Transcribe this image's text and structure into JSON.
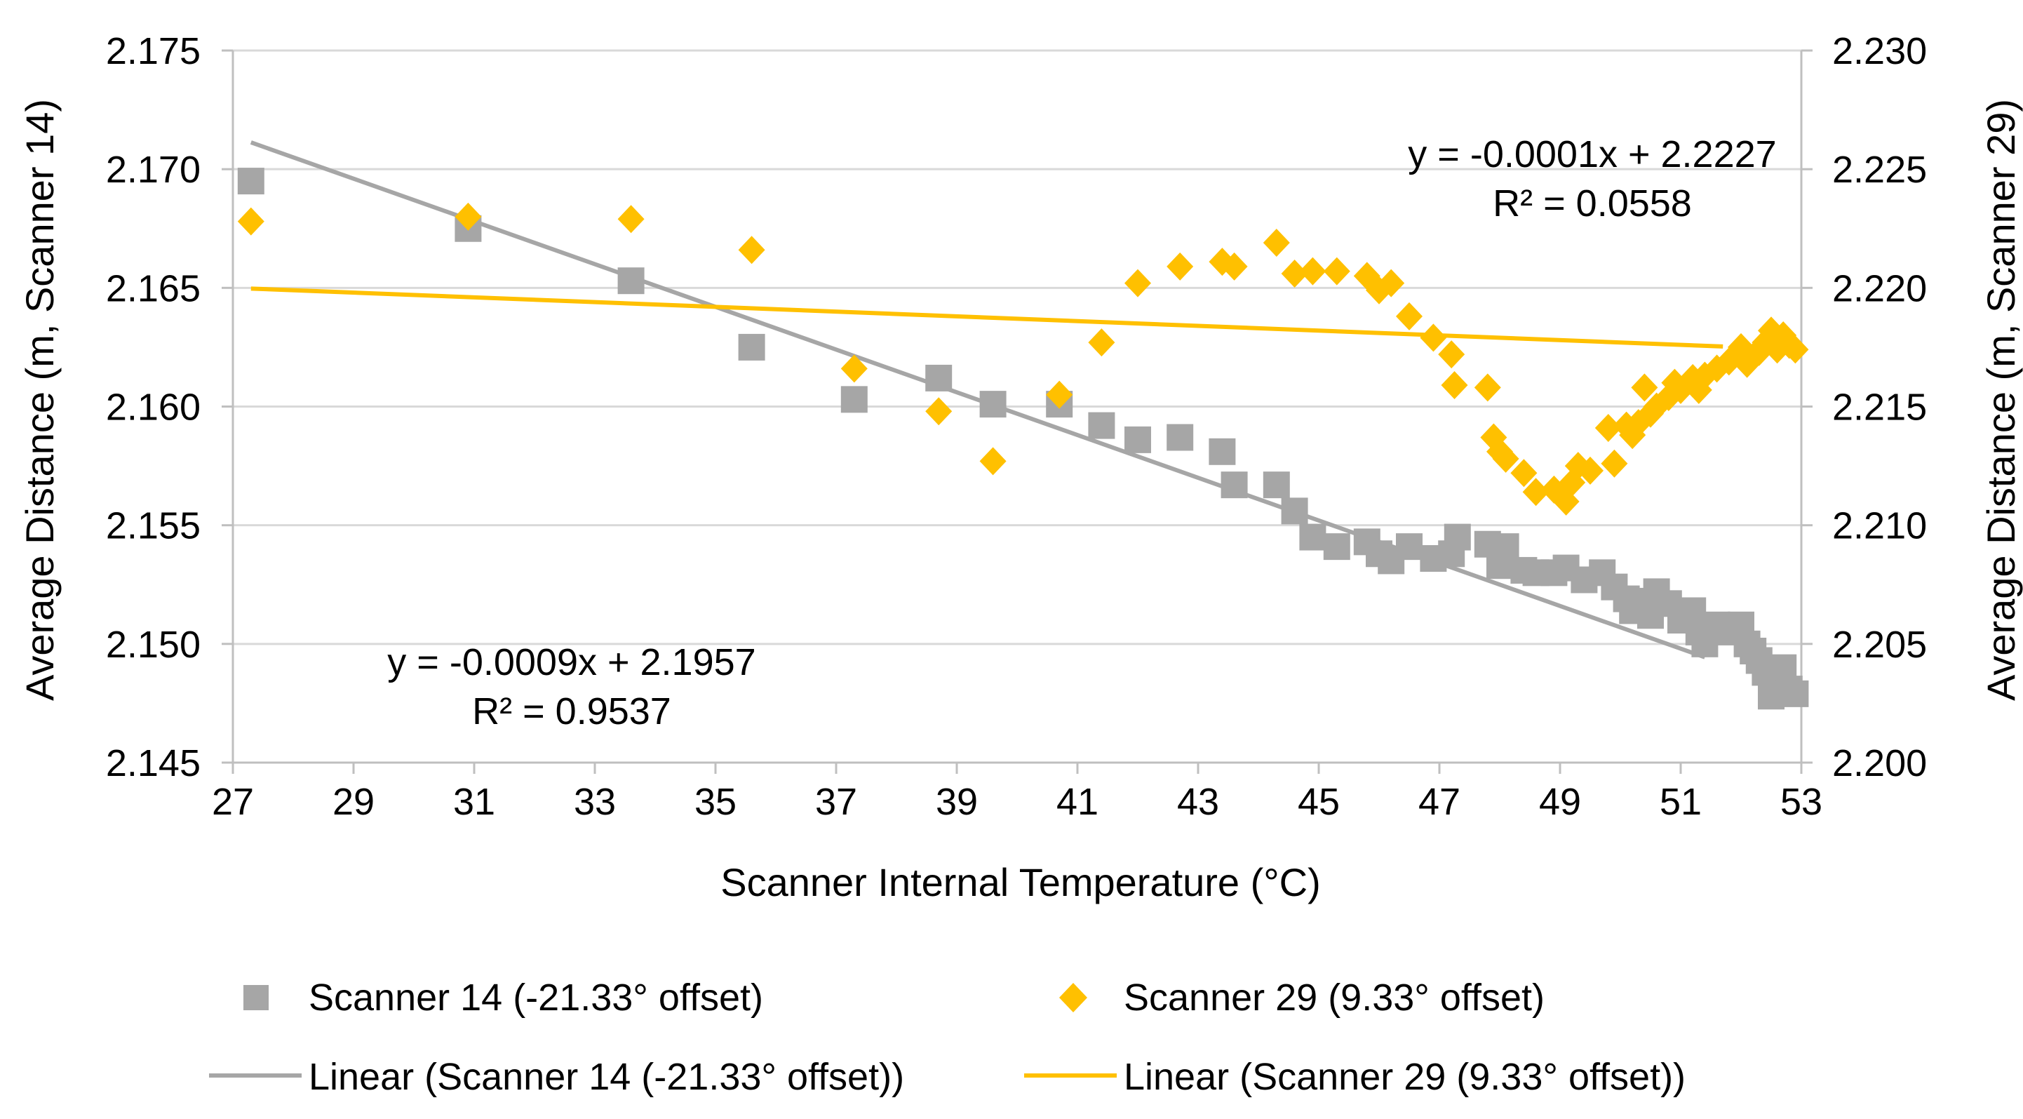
{
  "chart_data": {
    "type": "scatter",
    "title": "",
    "xlabel": "Scanner Internal Temperature (°C)",
    "ylabel_left": "Average Distance (m, Scanner 14)",
    "ylabel_right": "Average Distance (m, Scanner 29)",
    "xlim": [
      27,
      53
    ],
    "ylim_left": [
      2.145,
      2.175
    ],
    "ylim_right": [
      2.2,
      2.23
    ],
    "x_ticks": [
      "27",
      "29",
      "31",
      "33",
      "35",
      "37",
      "39",
      "41",
      "43",
      "45",
      "47",
      "49",
      "51",
      "53"
    ],
    "y_ticks_left": [
      "2.145",
      "2.150",
      "2.155",
      "2.160",
      "2.165",
      "2.170",
      "2.175"
    ],
    "y_ticks_right": [
      "2.200",
      "2.205",
      "2.210",
      "2.215",
      "2.220",
      "2.225",
      "2.230"
    ],
    "grid": true,
    "colors": {
      "scanner14": "#A6A6A6",
      "scanner29": "#FFC000",
      "grid": "#D9D9D9"
    },
    "series": [
      {
        "name": "Scanner 14 (-21.33° offset)",
        "axis": "left",
        "marker": "square",
        "points": [
          [
            27.3,
            2.1695
          ],
          [
            30.9,
            2.1675
          ],
          [
            33.6,
            2.1653
          ],
          [
            35.6,
            2.1625
          ],
          [
            37.3,
            2.1603
          ],
          [
            38.7,
            2.1612
          ],
          [
            39.6,
            2.1601
          ],
          [
            40.7,
            2.1601
          ],
          [
            41.4,
            2.1592
          ],
          [
            42.0,
            2.1586
          ],
          [
            42.7,
            2.1587
          ],
          [
            43.4,
            2.1581
          ],
          [
            43.6,
            2.1567
          ],
          [
            44.3,
            2.1567
          ],
          [
            44.6,
            2.1556
          ],
          [
            44.9,
            2.1545
          ],
          [
            45.3,
            2.1541
          ],
          [
            45.8,
            2.1543
          ],
          [
            46.0,
            2.1538
          ],
          [
            46.2,
            2.1535
          ],
          [
            46.5,
            2.1541
          ],
          [
            46.9,
            2.1536
          ],
          [
            47.2,
            2.1538
          ],
          [
            47.3,
            2.1545
          ],
          [
            47.8,
            2.1542
          ],
          [
            48.0,
            2.1533
          ],
          [
            48.1,
            2.1541
          ],
          [
            48.4,
            2.1531
          ],
          [
            48.6,
            2.153
          ],
          [
            48.9,
            2.153
          ],
          [
            49.1,
            2.1532
          ],
          [
            49.4,
            2.1527
          ],
          [
            49.7,
            2.153
          ],
          [
            49.9,
            2.1524
          ],
          [
            50.1,
            2.1519
          ],
          [
            50.2,
            2.1514
          ],
          [
            50.4,
            2.1518
          ],
          [
            50.5,
            2.1512
          ],
          [
            50.6,
            2.1522
          ],
          [
            50.8,
            2.1517
          ],
          [
            51.0,
            2.151
          ],
          [
            51.2,
            2.1514
          ],
          [
            51.3,
            2.1505
          ],
          [
            51.4,
            2.15
          ],
          [
            51.6,
            2.1508
          ],
          [
            51.8,
            2.1505
          ],
          [
            52.0,
            2.1508
          ],
          [
            52.1,
            2.15
          ],
          [
            52.2,
            2.1497
          ],
          [
            52.3,
            2.1493
          ],
          [
            52.4,
            2.1488
          ],
          [
            52.5,
            2.1478
          ],
          [
            52.6,
            2.1484
          ],
          [
            52.7,
            2.149
          ],
          [
            52.8,
            2.1481
          ],
          [
            52.9,
            2.1479
          ]
        ]
      },
      {
        "name": "Scanner 29 (9.33° offset)",
        "axis": "right",
        "marker": "diamond",
        "points": [
          [
            27.3,
            2.2228
          ],
          [
            30.9,
            2.223
          ],
          [
            33.6,
            2.2229
          ],
          [
            35.6,
            2.2216
          ],
          [
            37.3,
            2.2166
          ],
          [
            38.7,
            2.2148
          ],
          [
            39.6,
            2.2127
          ],
          [
            40.7,
            2.2155
          ],
          [
            41.4,
            2.2177
          ],
          [
            42.0,
            2.2202
          ],
          [
            42.7,
            2.2209
          ],
          [
            43.4,
            2.2211
          ],
          [
            43.6,
            2.2209
          ],
          [
            44.3,
            2.2219
          ],
          [
            44.6,
            2.2206
          ],
          [
            44.9,
            2.2207
          ],
          [
            45.3,
            2.2207
          ],
          [
            45.8,
            2.2205
          ],
          [
            46.0,
            2.2199
          ],
          [
            46.2,
            2.2202
          ],
          [
            46.5,
            2.2188
          ],
          [
            46.9,
            2.2179
          ],
          [
            47.2,
            2.2172
          ],
          [
            47.25,
            2.2159
          ],
          [
            47.8,
            2.2158
          ],
          [
            47.9,
            2.2137
          ],
          [
            48.0,
            2.2131
          ],
          [
            48.1,
            2.2128
          ],
          [
            48.4,
            2.2122
          ],
          [
            48.6,
            2.2114
          ],
          [
            48.9,
            2.2115
          ],
          [
            49.1,
            2.211
          ],
          [
            49.2,
            2.2118
          ],
          [
            49.3,
            2.2125
          ],
          [
            49.5,
            2.2123
          ],
          [
            49.8,
            2.2141
          ],
          [
            49.9,
            2.2126
          ],
          [
            50.1,
            2.2142
          ],
          [
            50.2,
            2.2138
          ],
          [
            50.3,
            2.2143
          ],
          [
            50.4,
            2.2158
          ],
          [
            50.5,
            2.2147
          ],
          [
            50.6,
            2.215
          ],
          [
            50.8,
            2.2154
          ],
          [
            50.9,
            2.216
          ],
          [
            51.0,
            2.2157
          ],
          [
            51.2,
            2.2162
          ],
          [
            51.3,
            2.2157
          ],
          [
            51.4,
            2.2163
          ],
          [
            51.6,
            2.2166
          ],
          [
            51.8,
            2.2169
          ],
          [
            52.0,
            2.2175
          ],
          [
            52.1,
            2.2168
          ],
          [
            52.2,
            2.2171
          ],
          [
            52.3,
            2.2173
          ],
          [
            52.4,
            2.2177
          ],
          [
            52.5,
            2.2182
          ],
          [
            52.6,
            2.2174
          ],
          [
            52.7,
            2.218
          ],
          [
            52.8,
            2.2176
          ],
          [
            52.9,
            2.2174
          ]
        ]
      }
    ],
    "trendlines": [
      {
        "name": "Linear (Scanner 14 (-21.33° offset))",
        "axis": "left",
        "slope": -0.0009,
        "intercept": 2.1957,
        "x_range": [
          27.3,
          51.4
        ],
        "equation": "y = -0.0009x + 2.1957",
        "r2": "R² = 0.9537"
      },
      {
        "name": "Linear (Scanner 29 (9.33° offset))",
        "axis": "right",
        "slope": -0.0001,
        "intercept": 2.2227,
        "x_range": [
          27.3,
          51.7
        ],
        "equation": "y = -0.0001x + 2.2227",
        "r2": "R² = 0.0558"
      }
    ],
    "legend": {
      "placement": "bottom",
      "entries": [
        "Scanner 14 (-21.33° offset)",
        "Scanner 29 (9.33° offset)",
        "Linear (Scanner 14 (-21.33° offset))",
        "Linear (Scanner 29 (9.33° offset))"
      ]
    }
  }
}
